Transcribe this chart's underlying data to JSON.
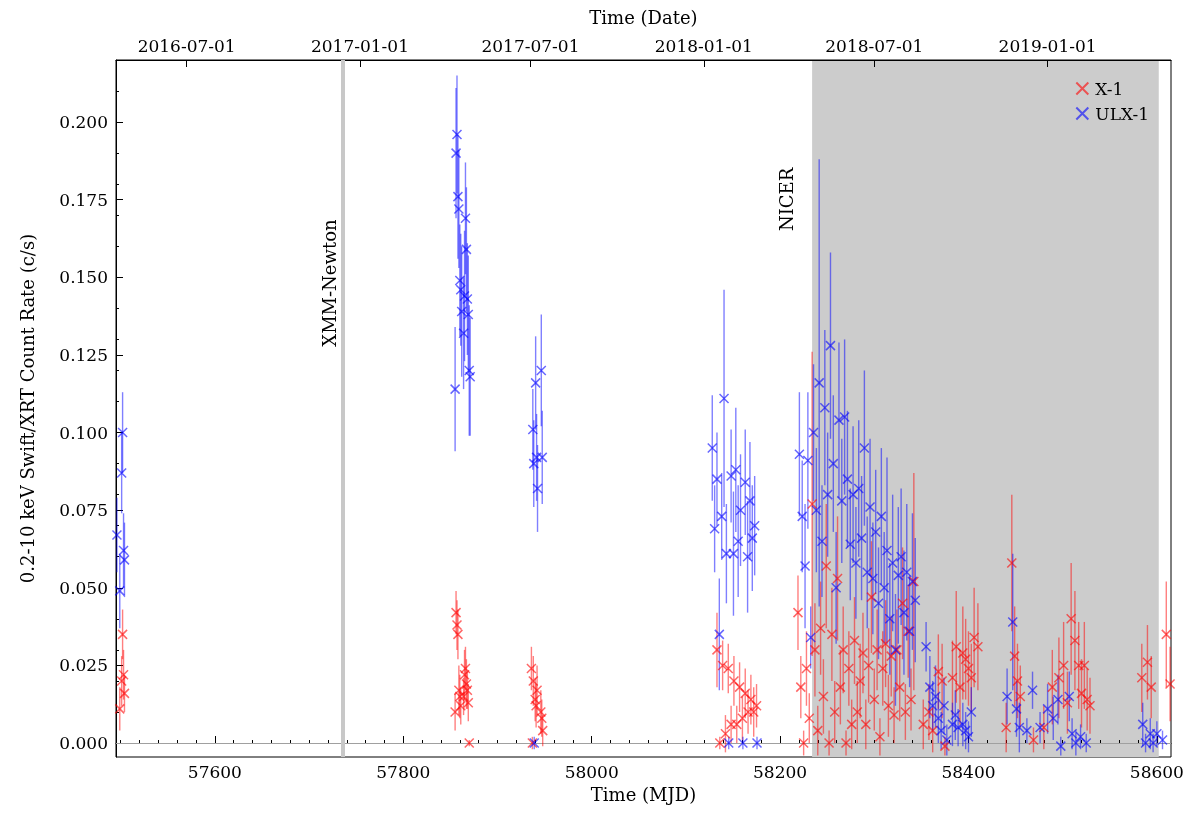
{
  "chart_data": {
    "type": "scatter",
    "xlabel": "Time (MJD)",
    "x2label": "Time (Date)",
    "ylabel": "0.2-10 keV Swift/XRT Count Rate (c/s)",
    "xlim": [
      57495,
      58615
    ],
    "xticks": [
      57600,
      57800,
      58000,
      58200,
      58400,
      58600
    ],
    "x2lim": [
      "2016-04-17",
      "2019-05-12"
    ],
    "x2ticks": [
      "2016-07-01",
      "2017-01-01",
      "2017-07-01",
      "2018-01-01",
      "2018-07-01",
      "2019-01-01"
    ],
    "ylim": [
      -0.0045,
      0.22
    ],
    "yticks": [
      {
        "value": 0,
        "label": "0.000"
      },
      {
        "value": 0.025,
        "label": "0.025"
      },
      {
        "value": 0.05,
        "label": "0.050"
      },
      {
        "value": 0.075,
        "label": "0.075"
      },
      {
        "value": 0.1,
        "label": "0.100"
      },
      {
        "value": 0.125,
        "label": "0.125"
      },
      {
        "value": 0.15,
        "label": "0.150"
      },
      {
        "value": 0.175,
        "label": "0.175"
      },
      {
        "value": 0.2,
        "label": "0.200"
      }
    ],
    "grid": false,
    "legend": "top right",
    "marker": "cross",
    "ref_lines": [
      {
        "axis": "y",
        "value": 0,
        "label": null,
        "color": "#a0a0a0"
      },
      {
        "axis": "x",
        "value": 57736,
        "label": "XMM-Newton",
        "color": "#c8c8c8"
      }
    ],
    "bands": [
      {
        "axis": "x",
        "from": 58234,
        "to": 58602,
        "label": "NICER",
        "color": "#cccccc"
      }
    ],
    "series": [
      {
        "name": "X-1",
        "color": "#ff0000",
        "x": [
          57499,
          57502,
          57503,
          57501,
          57504,
          57856,
          57857,
          57858,
          57859,
          57860,
          57861,
          57855,
          57866,
          57865,
          57867,
          57868,
          57864,
          57869,
          57870,
          57936,
          57938,
          57937,
          57940,
          57941,
          57942,
          57946,
          57947,
          57948,
          58133,
          58136,
          58139,
          58142,
          58145,
          58148,
          58151,
          58154,
          58157,
          58160,
          58163,
          58166,
          58169,
          58172,
          58175,
          58219,
          58222,
          58225,
          58228,
          58231,
          58234,
          58237,
          58240,
          58243,
          58246,
          58249,
          58252,
          58255,
          58258,
          58261,
          58264,
          58267,
          58270,
          58273,
          58276,
          58279,
          58282,
          58285,
          58288,
          58291,
          58294,
          58297,
          58300,
          58303,
          58306,
          58309,
          58312,
          58315,
          58318,
          58321,
          58324,
          58327,
          58330,
          58333,
          58336,
          58339,
          58342,
          58352,
          58358,
          58362,
          58368,
          58372,
          58375,
          58383,
          58387,
          58391,
          58394,
          58397,
          58400,
          58403,
          58406,
          58410,
          58440,
          58446,
          58449,
          58452,
          58455,
          58469,
          58480,
          58489,
          58496,
          58501,
          58505,
          58509,
          58513,
          58517,
          58520,
          58523,
          58526,
          58529,
          58584,
          58590,
          58594,
          58610,
          58614
        ],
        "values": [
          0.011,
          0.035,
          0.022,
          0.02,
          0.016,
          0.042,
          0.038,
          0.035,
          0.017,
          0.015,
          0.012,
          0.01,
          0.024,
          0.022,
          0.019,
          0.017,
          0.015,
          0.013,
          0.0,
          0.024,
          0.02,
          0.0,
          0.014,
          0.012,
          0.017,
          0.01,
          0.008,
          0.004,
          0.03,
          0.0,
          0.025,
          0.003,
          0.024,
          0.006,
          0.02,
          0.006,
          0.018,
          0.008,
          0.016,
          0.01,
          0.014,
          0.01,
          0.012,
          0.042,
          0.018,
          0.0,
          0.024,
          0.008,
          0.077,
          0.03,
          0.004,
          0.037,
          0.015,
          0.057,
          0.0,
          0.035,
          0.01,
          0.053,
          0.018,
          0.03,
          0.0,
          0.024,
          0.006,
          0.033,
          0.01,
          0.02,
          0.029,
          0.006,
          0.025,
          0.047,
          0.014,
          0.03,
          0.002,
          0.024,
          0.032,
          0.012,
          0.028,
          0.009,
          0.03,
          0.018,
          0.045,
          0.01,
          0.036,
          0.014,
          0.052,
          0.006,
          0.01,
          0.004,
          0.023,
          0.02,
          -0.001,
          0.021,
          0.031,
          0.018,
          0.029,
          0.027,
          0.024,
          0.021,
          0.034,
          0.031,
          0.005,
          0.058,
          0.028,
          0.02,
          0.015,
          0.001,
          0.005,
          0.018,
          0.021,
          0.025,
          0.013,
          0.04,
          0.033,
          0.025,
          0.016,
          0.025,
          0.014,
          0.012,
          0.021,
          0.026,
          0.018,
          0.035,
          0.019
        ],
        "errors": [
          0.007,
          0.008,
          0.008,
          0.008,
          0.006,
          0.007,
          0.008,
          0.008,
          0.008,
          0.007,
          0.006,
          0.006,
          0.007,
          0.008,
          0.008,
          0.006,
          0.006,
          0.006,
          0.001,
          0.007,
          0.008,
          0.002,
          0.007,
          0.007,
          0.008,
          0.007,
          0.006,
          0.005,
          0.012,
          0.002,
          0.008,
          0.006,
          0.008,
          0.006,
          0.008,
          0.006,
          0.008,
          0.007,
          0.008,
          0.007,
          0.008,
          0.008,
          0.007,
          0.012,
          0.01,
          0.004,
          0.012,
          0.008,
          0.049,
          0.015,
          0.008,
          0.015,
          0.012,
          0.02,
          0.004,
          0.015,
          0.01,
          0.02,
          0.012,
          0.014,
          0.004,
          0.012,
          0.008,
          0.014,
          0.01,
          0.012,
          0.013,
          0.008,
          0.012,
          0.018,
          0.01,
          0.013,
          0.006,
          0.012,
          0.014,
          0.01,
          0.013,
          0.009,
          0.013,
          0.011,
          0.018,
          0.009,
          0.015,
          0.01,
          0.035,
          0.008,
          0.009,
          0.007,
          0.012,
          0.012,
          0.003,
          0.012,
          0.018,
          0.012,
          0.015,
          0.013,
          0.012,
          0.011,
          0.016,
          0.014,
          0.008,
          0.022,
          0.016,
          0.012,
          0.01,
          0.004,
          0.007,
          0.012,
          0.013,
          0.014,
          0.01,
          0.018,
          0.016,
          0.014,
          0.011,
          0.014,
          0.01,
          0.009,
          0.011,
          0.012,
          0.01,
          0.017,
          0.012
        ]
      },
      {
        "name": "ULX-1",
        "color": "#0000ff",
        "x": [
          57496,
          57499,
          57502,
          57501,
          57503,
          57504,
          57857,
          57856,
          57858,
          57859,
          57860,
          57861,
          57862,
          57855,
          57866,
          57867,
          57865,
          57868,
          57869,
          57864,
          57870,
          57871,
          57937.5,
          57938.5,
          57939,
          57940.5,
          57941.5,
          57942.5,
          57946.5,
          57947.5,
          58128,
          58130.5,
          58133,
          58135.5,
          58138,
          58140.5,
          58143,
          58145.5,
          58148,
          58150.5,
          58153,
          58155.5,
          58158,
          58160.5,
          58163,
          58165.5,
          58168,
          58170.5,
          58173,
          58175.5,
          58220.5,
          58223.5,
          58226.5,
          58229.5,
          58232.5,
          58235.5,
          58238.5,
          58241.5,
          58244.5,
          58247.5,
          58250.5,
          58253.5,
          58256.5,
          58259.5,
          58262.5,
          58265.5,
          58268.5,
          58271.5,
          58274.5,
          58277.5,
          58280.5,
          58283.5,
          58286.5,
          58289.5,
          58292.5,
          58295.5,
          58298.5,
          58301.5,
          58304.5,
          58307.5,
          58310.5,
          58313.5,
          58316.5,
          58319.5,
          58322.5,
          58325.5,
          58328.5,
          58331.5,
          58334.5,
          58337.5,
          58340.5,
          58343.5,
          58355,
          58359,
          58362,
          58365,
          58368,
          58371,
          58374,
          58377,
          58383,
          58386,
          58389,
          58394,
          58397,
          58400,
          58403,
          58441,
          58447,
          58451,
          58454,
          58462,
          58468,
          58476,
          58484,
          58490,
          58495,
          58498,
          58507,
          58510,
          58514,
          58519,
          58525,
          58585,
          58588,
          58593,
          58596,
          58600,
          58606
        ],
        "values": [
          0.067,
          0.049,
          0.1,
          0.087,
          0.062,
          0.059,
          0.196,
          0.19,
          0.176,
          0.172,
          0.149,
          0.146,
          0.139,
          0.114,
          0.169,
          0.159,
          0.144,
          0.143,
          0.138,
          0.132,
          0.12,
          0.118,
          0.101,
          0.09,
          0.0,
          0.116,
          0.092,
          0.082,
          0.12,
          0.092,
          0.095,
          0.069,
          0.085,
          0.035,
          0.073,
          0.111,
          0.061,
          0.0,
          0.086,
          0.061,
          0.088,
          0.065,
          0.075,
          0.0,
          0.084,
          0.06,
          0.078,
          0.066,
          0.07,
          0.0,
          0.093,
          0.073,
          0.057,
          0.091,
          0.034,
          0.1,
          0.075,
          0.116,
          0.065,
          0.108,
          0.08,
          0.128,
          0.09,
          0.05,
          0.104,
          0.078,
          0.105,
          0.085,
          0.064,
          0.08,
          0.058,
          0.082,
          0.066,
          0.095,
          0.055,
          0.076,
          0.053,
          0.068,
          0.045,
          0.073,
          0.05,
          0.062,
          0.04,
          0.058,
          0.03,
          0.054,
          0.06,
          0.042,
          0.055,
          0.036,
          0.052,
          0.046,
          0.031,
          0.018,
          0.012,
          0.015,
          0.008,
          0.004,
          0.012,
          0.001,
          0.006,
          0.009,
          0.005,
          0.006,
          0.004,
          0.002,
          0.01,
          0.015,
          0.039,
          0.011,
          0.005,
          0.004,
          0.017,
          0.005,
          0.011,
          0.008,
          0.014,
          -0.001,
          0.015,
          0.003,
          0.0,
          0.002,
          0.0,
          0.006,
          0.0,
          0.003,
          0.0,
          0.003,
          0.001
        ],
        "errors": [
          0.012,
          0.012,
          0.013,
          0.013,
          0.012,
          0.012,
          0.019,
          0.021,
          0.02,
          0.019,
          0.018,
          0.018,
          0.021,
          0.02,
          0.018,
          0.02,
          0.021,
          0.018,
          0.019,
          0.018,
          0.021,
          0.019,
          0.013,
          0.014,
          0.002,
          0.015,
          0.014,
          0.014,
          0.018,
          0.015,
          0.017,
          0.014,
          0.015,
          0.018,
          0.014,
          0.035,
          0.016,
          0.002,
          0.015,
          0.02,
          0.02,
          0.018,
          0.018,
          0.002,
          0.017,
          0.018,
          0.019,
          0.017,
          0.016,
          0.002,
          0.02,
          0.018,
          0.02,
          0.022,
          0.01,
          0.022,
          0.02,
          0.072,
          0.018,
          0.025,
          0.02,
          0.03,
          0.022,
          0.018,
          0.025,
          0.02,
          0.025,
          0.022,
          0.018,
          0.022,
          0.018,
          0.022,
          0.02,
          0.025,
          0.018,
          0.022,
          0.018,
          0.02,
          0.018,
          0.022,
          0.018,
          0.03,
          0.018,
          0.022,
          0.018,
          0.022,
          0.022,
          0.02,
          0.022,
          0.018,
          0.022,
          0.02,
          0.008,
          0.01,
          0.008,
          0.01,
          0.008,
          0.006,
          0.009,
          0.005,
          0.007,
          0.008,
          0.006,
          0.007,
          0.006,
          0.005,
          0.008,
          0.009,
          0.022,
          0.009,
          0.008,
          0.004,
          0.006,
          0.005,
          0.008,
          0.007,
          0.008,
          0.003,
          0.008,
          0.005,
          0.004,
          0.004,
          0.003,
          0.007,
          0.003,
          0.005,
          0.003,
          0.004,
          0.003
        ]
      }
    ]
  }
}
